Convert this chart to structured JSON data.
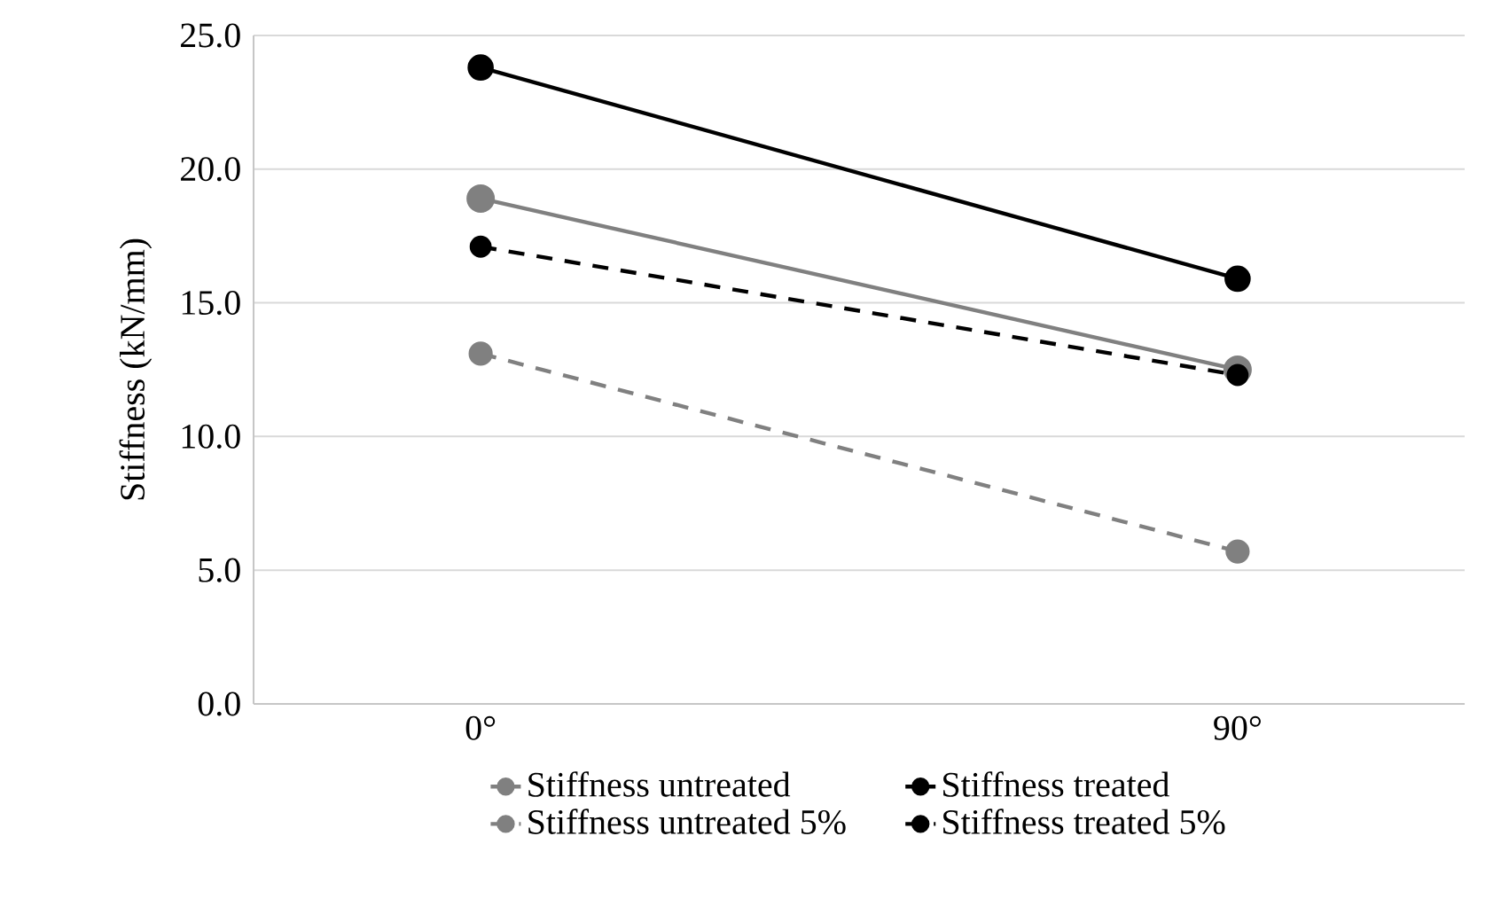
{
  "chart_data": {
    "type": "line",
    "ylabel": "Stiffness (kN/mm)",
    "categories": [
      "0°",
      "90°"
    ],
    "series": [
      {
        "name": "Stiffness untreated",
        "color": "#808080",
        "values": [
          18.9,
          12.5
        ],
        "line_style": "solid"
      },
      {
        "name": "Stiffness treated",
        "color": "#000000",
        "values": [
          23.8,
          15.9
        ],
        "line_style": "solid"
      },
      {
        "name": "Stiffness untreated 5%",
        "color": "#808080",
        "values": [
          13.1,
          5.7
        ],
        "line_style": "dashed"
      },
      {
        "name": "Stiffness treated 5%",
        "color": "#000000",
        "values": [
          17.1,
          12.3
        ],
        "line_style": "dashed"
      }
    ],
    "ylim": [
      0,
      25
    ],
    "yticks": [
      {
        "value": 0,
        "label": "0.0"
      },
      {
        "value": 5,
        "label": "5.0"
      },
      {
        "value": 10,
        "label": "10.0"
      },
      {
        "value": 15,
        "label": "15.0"
      },
      {
        "value": 20,
        "label": "20.0"
      },
      {
        "value": 25,
        "label": "25.0"
      }
    ],
    "grid": "y",
    "legend": "bottom",
    "marker": "circle"
  }
}
